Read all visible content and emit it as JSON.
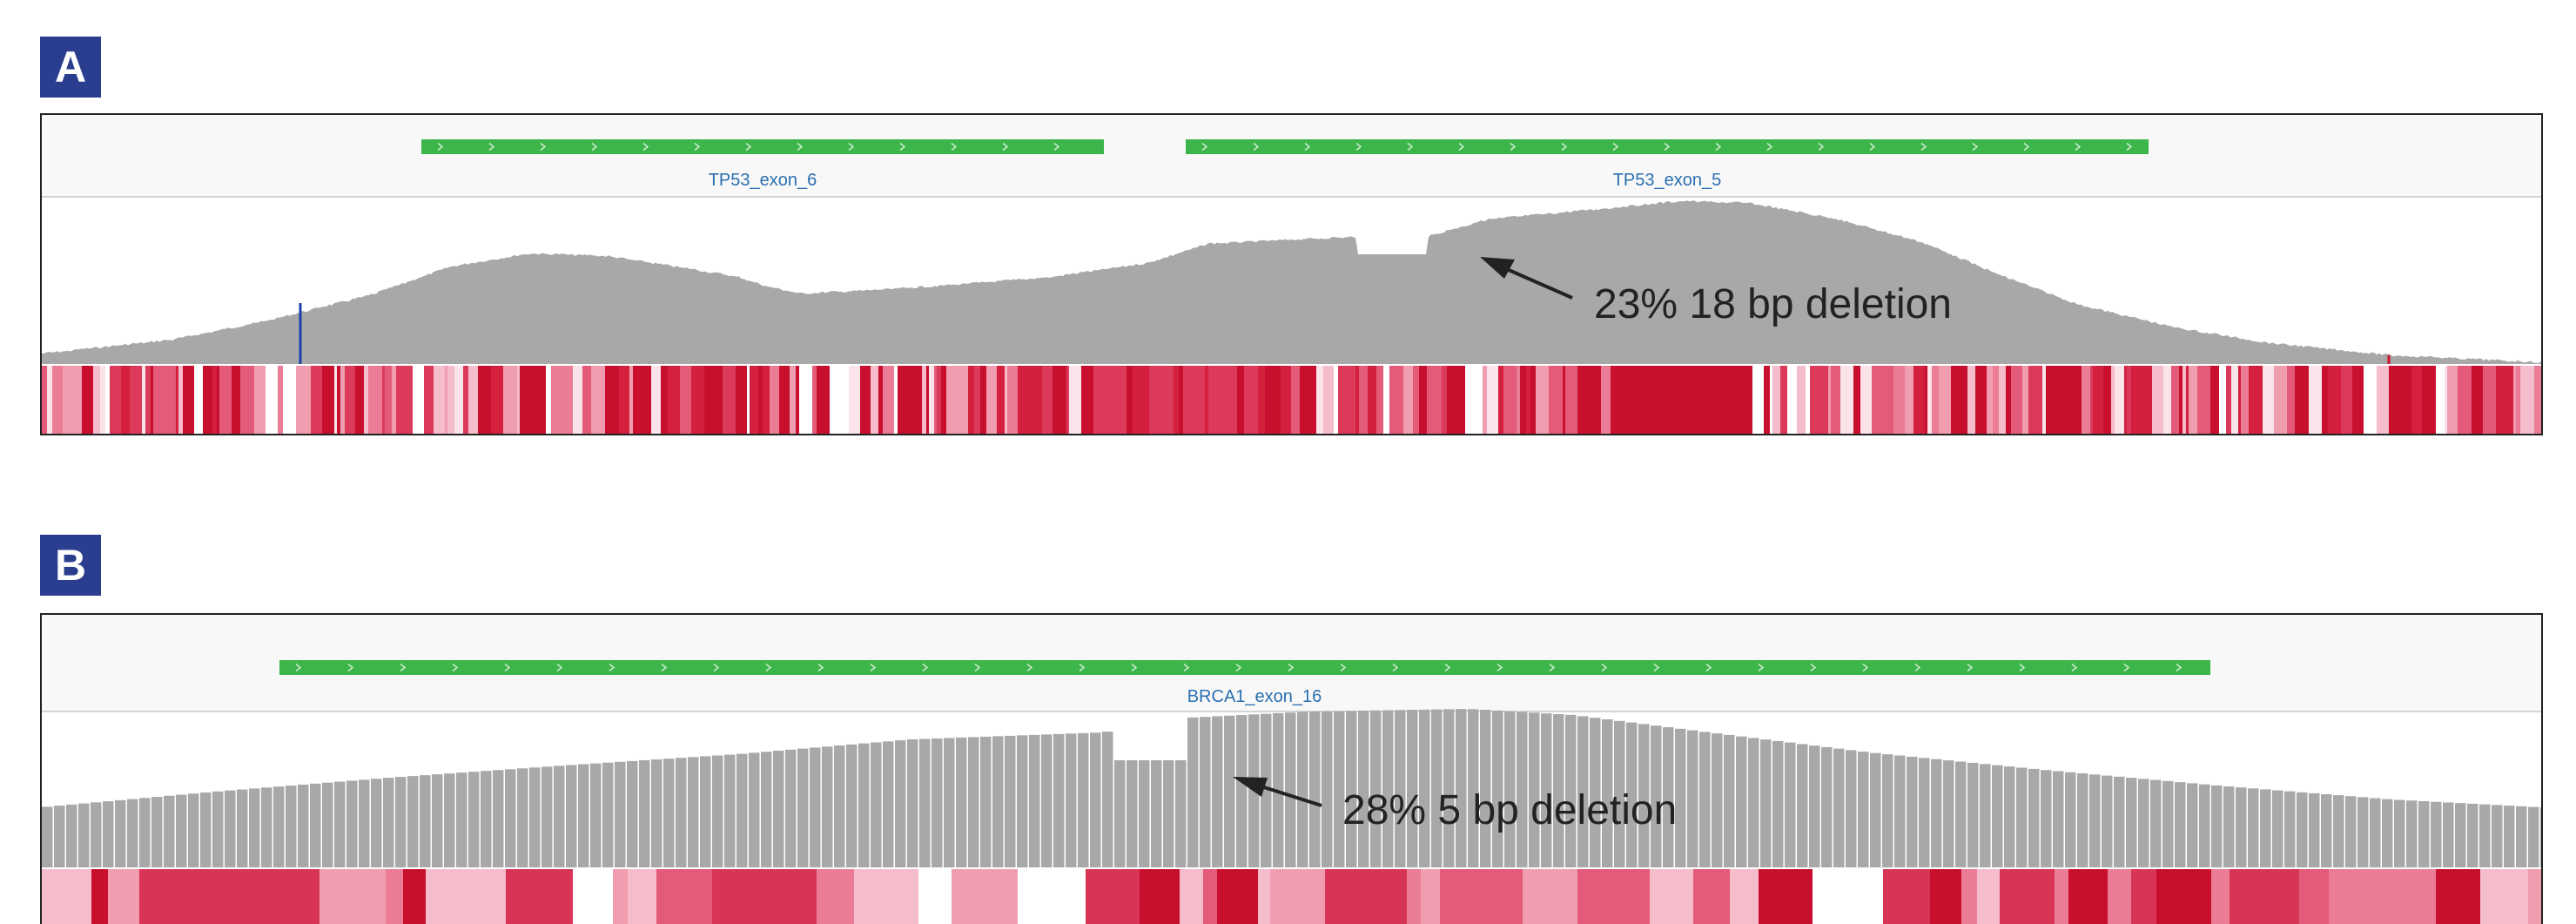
{
  "panels": [
    {
      "letter": "A",
      "exons": [
        {
          "label": "TP53_exon_6"
        },
        {
          "label": "TP53_exon_5"
        }
      ],
      "annotation": "23% 18 bp deletion"
    },
    {
      "letter": "B",
      "exons": [
        {
          "label": "BRCA1_exon_16"
        }
      ],
      "annotation": "28% 5 bp deletion"
    }
  ],
  "colors": {
    "badge": "#2a3d8f",
    "exon": "#3cb54a",
    "coverage": "#a8a8a8",
    "label": "#2a6fb0",
    "heat_dark": "#c8102e",
    "heat_light": "#f7c6d2"
  }
}
